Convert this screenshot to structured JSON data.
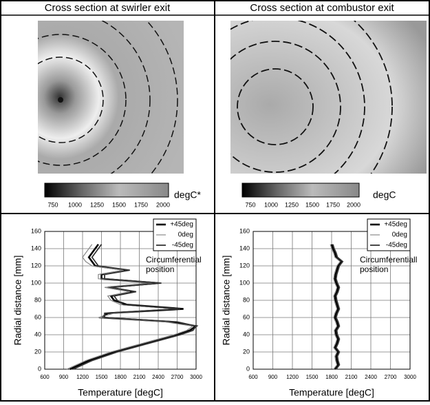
{
  "panels": {
    "headers": [
      "Cross section at swirler exit",
      "Cross section at combustor exit"
    ]
  },
  "colorbars": [
    {
      "unit": "degC*",
      "ticks": [
        750,
        1000,
        1250,
        1500,
        1750,
        2000
      ]
    },
    {
      "unit": "degC",
      "ticks": [
        750,
        1000,
        1250,
        1500,
        1750,
        2000
      ]
    }
  ],
  "chart_data": [
    {
      "type": "line",
      "orientation": "horizontal",
      "xlabel": "Radial distance [mm]",
      "ylabel": "Temperature [degC]",
      "annotation": [
        "Circumferential",
        "position"
      ],
      "x": [
        0,
        5,
        10,
        15,
        20,
        25,
        30,
        35,
        40,
        45,
        50,
        55,
        60,
        65,
        70,
        75,
        80,
        85,
        90,
        95,
        100,
        105,
        110,
        115,
        120,
        125,
        130,
        135,
        140,
        145
      ],
      "xlim": [
        0,
        160
      ],
      "xticks": [
        0,
        20,
        40,
        60,
        80,
        100,
        120,
        140,
        160
      ],
      "ylim": [
        600,
        3000
      ],
      "yticks": [
        600,
        900,
        1200,
        1500,
        1800,
        2100,
        2400,
        2700,
        3000
      ],
      "grid": true,
      "series": [
        {
          "name": "+45deg",
          "color": "#000000",
          "values": [
            1000,
            1150,
            1300,
            1500,
            1700,
            1950,
            2200,
            2450,
            2700,
            2900,
            3000,
            2600,
            1500,
            1600,
            2800,
            1900,
            1700,
            1650,
            2000,
            1600,
            2400,
            1500,
            1500,
            1900,
            1400,
            1350,
            1300,
            1350,
            1400,
            1450
          ]
        },
        {
          "name": "0deg",
          "color": "#888888",
          "values": [
            950,
            1100,
            1250,
            1450,
            1650,
            1900,
            2150,
            2400,
            2650,
            2850,
            2950,
            2500,
            1450,
            1700,
            2700,
            1800,
            1650,
            1600,
            1950,
            1550,
            2350,
            1450,
            1450,
            1850,
            1350,
            1250,
            1200,
            1250,
            1300,
            1350
          ]
        },
        {
          "name": "-45deg",
          "color": "#333333",
          "values": [
            1050,
            1200,
            1350,
            1550,
            1750,
            2000,
            2250,
            2500,
            2750,
            2950,
            3000,
            2700,
            1550,
            1550,
            2750,
            1850,
            1750,
            1700,
            2050,
            1650,
            2450,
            1550,
            1550,
            1950,
            1450,
            1400,
            1350,
            1400,
            1450,
            1500
          ]
        }
      ]
    },
    {
      "type": "line",
      "orientation": "horizontal",
      "xlabel": "Radial distance [mm]",
      "ylabel": "Temperature [degC]",
      "annotation": [
        "Circumferentiall",
        "position"
      ],
      "x": [
        0,
        5,
        10,
        15,
        20,
        25,
        30,
        35,
        40,
        45,
        50,
        55,
        60,
        65,
        70,
        75,
        80,
        85,
        90,
        95,
        100,
        105,
        110,
        115,
        120,
        125,
        130,
        135,
        140,
        145
      ],
      "xlim": [
        0,
        160
      ],
      "xticks": [
        0,
        20,
        40,
        60,
        80,
        100,
        120,
        140,
        160
      ],
      "ylim": [
        600,
        3000
      ],
      "yticks": [
        600,
        900,
        1200,
        1500,
        1800,
        2100,
        2400,
        2700,
        3000
      ],
      "grid": true,
      "series": [
        {
          "name": "+45deg",
          "color": "#000000",
          "values": [
            1850,
            1900,
            1880,
            1870,
            1900,
            1850,
            1880,
            1900,
            1870,
            1860,
            1900,
            1880,
            1850,
            1870,
            1900,
            1880,
            1860,
            1850,
            1880,
            1900,
            1870,
            1850,
            1860,
            1880,
            1900,
            1950,
            1870,
            1850,
            1820,
            1800
          ]
        },
        {
          "name": "0deg",
          "color": "#888888",
          "values": [
            1830,
            1880,
            1860,
            1850,
            1880,
            1830,
            1860,
            1880,
            1850,
            1840,
            1880,
            1860,
            1830,
            1850,
            1880,
            1860,
            1840,
            1830,
            1860,
            1880,
            1850,
            1830,
            1840,
            1860,
            1880,
            1930,
            1850,
            1830,
            1800,
            1780
          ]
        },
        {
          "name": "-45deg",
          "color": "#333333",
          "values": [
            1870,
            1920,
            1900,
            1890,
            1920,
            1870,
            1900,
            1920,
            1890,
            1880,
            1920,
            1900,
            1870,
            1890,
            1920,
            1900,
            1880,
            1870,
            1900,
            1920,
            1890,
            1870,
            1880,
            1900,
            1920,
            1970,
            1890,
            1870,
            1840,
            1820
          ]
        }
      ]
    }
  ]
}
